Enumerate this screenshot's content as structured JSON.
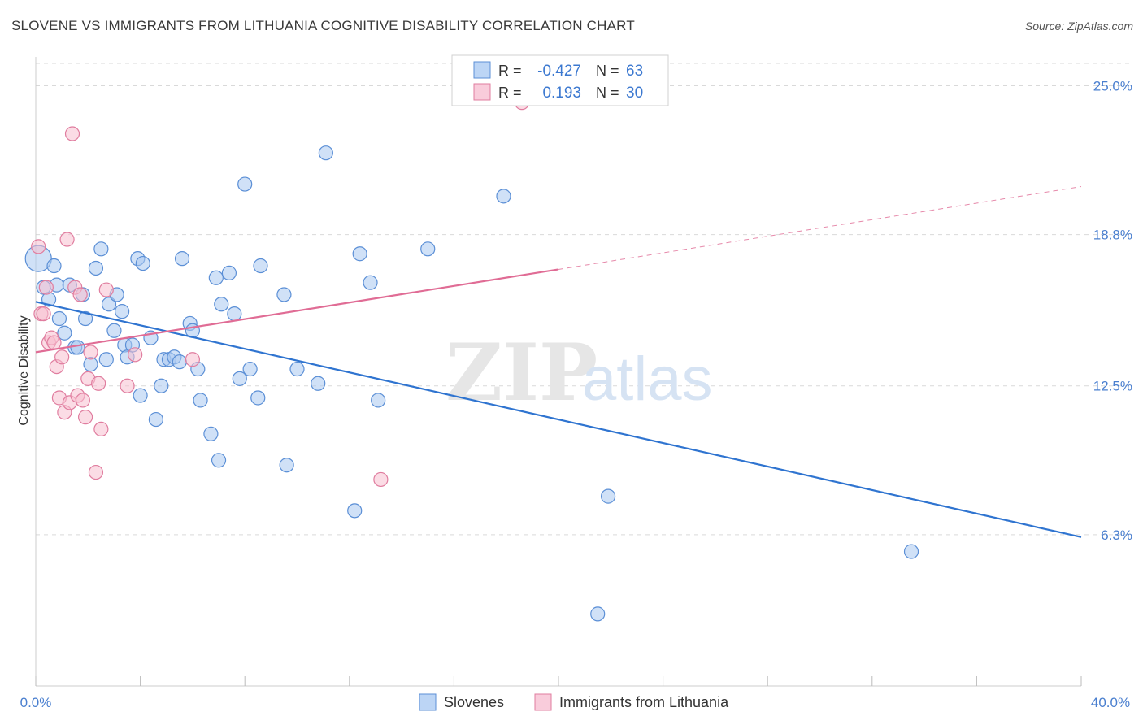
{
  "title": "SLOVENE VS IMMIGRANTS FROM LITHUANIA COGNITIVE DISABILITY CORRELATION CHART",
  "source": "Source: ZipAtlas.com",
  "watermark": {
    "zip": "ZIP",
    "atlas": "atlas"
  },
  "colors": {
    "slovenes_fill": "#a9c8f0",
    "slovenes_stroke": "#5b8fd6",
    "slovenes_line": "#2f74d0",
    "lithuania_fill": "#f7bfd0",
    "lithuania_stroke": "#e07d9f",
    "lithuania_line": "#e06c95",
    "tick_label": "#4a7fcf",
    "grid": "#d9d9d9"
  },
  "legend_stats": {
    "rows": [
      {
        "r_label": "R =",
        "r_value": "-0.427",
        "n_label": "N =",
        "n_value": "63"
      },
      {
        "r_label": "R =",
        "r_value": "0.193",
        "n_label": "N =",
        "n_value": "30"
      }
    ]
  },
  "chart_data": {
    "type": "scatter",
    "xlabel": "",
    "ylabel": "Cognitive Disability",
    "xlim": [
      0,
      40
    ],
    "ylim": [
      0,
      26.2
    ],
    "x_tick_labels": [
      "0.0%",
      "40.0%"
    ],
    "y_ticks": [
      6.3,
      12.5,
      18.8,
      25.0
    ],
    "y_tick_labels": [
      "6.3%",
      "12.5%",
      "18.8%",
      "25.0%"
    ],
    "grid": true,
    "legend": [
      "Slovenes",
      "Immigrants from Lithuania"
    ],
    "series": [
      {
        "name": "Slovenes",
        "trend": {
          "x": [
            0,
            40
          ],
          "y": [
            16.0,
            6.2
          ]
        },
        "points": [
          [
            0.1,
            17.8
          ],
          [
            0.3,
            16.6
          ],
          [
            0.5,
            16.1
          ],
          [
            0.7,
            17.5
          ],
          [
            0.8,
            16.7
          ],
          [
            0.9,
            15.3
          ],
          [
            1.1,
            14.7
          ],
          [
            1.3,
            16.7
          ],
          [
            1.5,
            14.1
          ],
          [
            1.6,
            14.1
          ],
          [
            1.8,
            16.3
          ],
          [
            1.9,
            15.3
          ],
          [
            2.1,
            13.4
          ],
          [
            2.3,
            17.4
          ],
          [
            2.5,
            18.2
          ],
          [
            2.7,
            13.6
          ],
          [
            2.8,
            15.9
          ],
          [
            3.0,
            14.8
          ],
          [
            3.1,
            16.3
          ],
          [
            3.3,
            15.6
          ],
          [
            3.4,
            14.2
          ],
          [
            3.5,
            13.7
          ],
          [
            3.7,
            14.2
          ],
          [
            3.9,
            17.8
          ],
          [
            4.0,
            12.1
          ],
          [
            4.1,
            17.6
          ],
          [
            4.4,
            14.5
          ],
          [
            4.6,
            11.1
          ],
          [
            4.8,
            12.5
          ],
          [
            4.9,
            13.6
          ],
          [
            5.1,
            13.6
          ],
          [
            5.3,
            13.7
          ],
          [
            5.5,
            13.5
          ],
          [
            5.6,
            17.8
          ],
          [
            5.9,
            15.1
          ],
          [
            6.0,
            14.8
          ],
          [
            6.2,
            13.2
          ],
          [
            6.3,
            11.9
          ],
          [
            6.7,
            10.5
          ],
          [
            6.9,
            17.0
          ],
          [
            7.0,
            9.4
          ],
          [
            7.1,
            15.9
          ],
          [
            7.4,
            17.2
          ],
          [
            7.6,
            15.5
          ],
          [
            7.8,
            12.8
          ],
          [
            8.0,
            20.9
          ],
          [
            8.2,
            13.2
          ],
          [
            8.5,
            12.0
          ],
          [
            8.6,
            17.5
          ],
          [
            9.5,
            16.3
          ],
          [
            9.6,
            9.2
          ],
          [
            10.0,
            13.2
          ],
          [
            10.8,
            12.6
          ],
          [
            11.1,
            22.2
          ],
          [
            12.2,
            7.3
          ],
          [
            12.4,
            18.0
          ],
          [
            12.8,
            16.8
          ],
          [
            13.1,
            11.9
          ],
          [
            15.0,
            18.2
          ],
          [
            17.9,
            20.4
          ],
          [
            21.9,
            7.9
          ],
          [
            33.5,
            5.6
          ],
          [
            21.5,
            3.0
          ]
        ]
      },
      {
        "name": "Immigrants from Lithuania",
        "trend": {
          "x": [
            0,
            40
          ],
          "y": [
            13.9,
            20.8
          ],
          "solid_until_x": 20
        },
        "points": [
          [
            0.1,
            18.3
          ],
          [
            0.2,
            15.5
          ],
          [
            0.3,
            15.5
          ],
          [
            0.4,
            16.6
          ],
          [
            0.5,
            14.3
          ],
          [
            0.6,
            14.5
          ],
          [
            0.7,
            14.3
          ],
          [
            0.8,
            13.3
          ],
          [
            0.9,
            12.0
          ],
          [
            1.0,
            13.7
          ],
          [
            1.1,
            11.4
          ],
          [
            1.2,
            18.6
          ],
          [
            1.3,
            11.8
          ],
          [
            1.4,
            23.0
          ],
          [
            1.5,
            16.6
          ],
          [
            1.6,
            12.1
          ],
          [
            1.7,
            16.3
          ],
          [
            1.8,
            11.9
          ],
          [
            1.9,
            11.2
          ],
          [
            2.0,
            12.8
          ],
          [
            2.1,
            13.9
          ],
          [
            2.3,
            8.9
          ],
          [
            2.4,
            12.6
          ],
          [
            2.5,
            10.7
          ],
          [
            2.7,
            16.5
          ],
          [
            3.5,
            12.5
          ],
          [
            3.8,
            13.8
          ],
          [
            6.0,
            13.6
          ],
          [
            13.2,
            8.6
          ],
          [
            18.6,
            24.3
          ]
        ]
      }
    ]
  }
}
